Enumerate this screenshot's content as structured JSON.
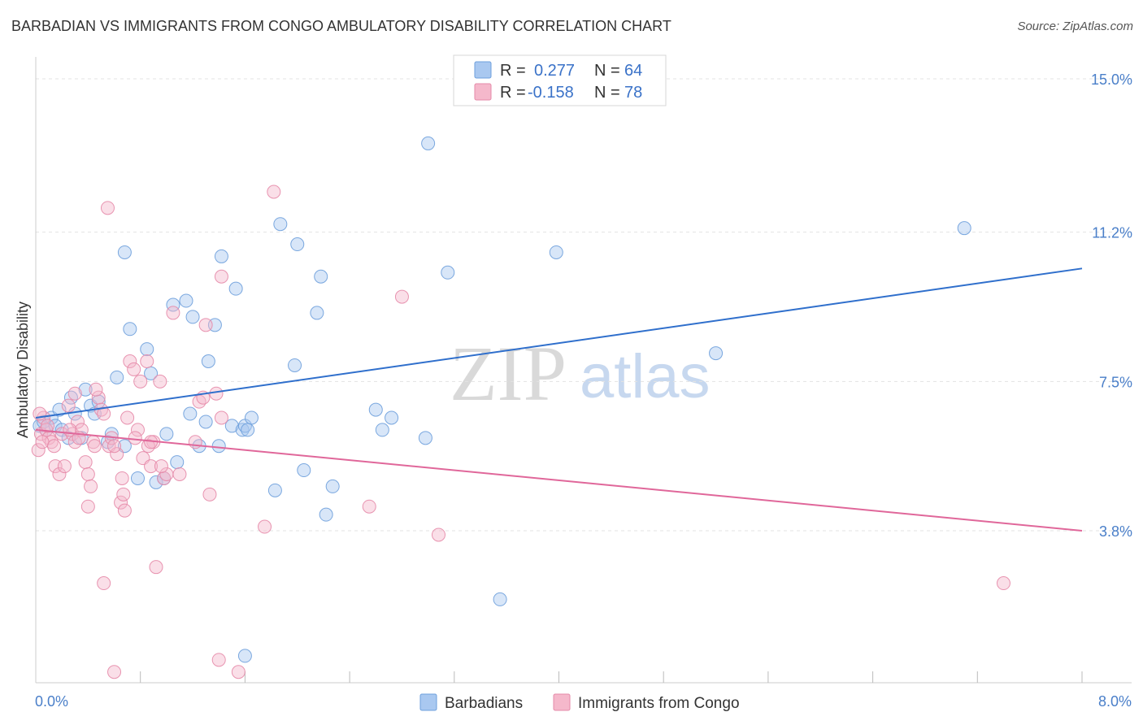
{
  "chart_data": {
    "type": "scatter",
    "title": "BARBADIAN VS IMMIGRANTS FROM CONGO AMBULATORY DISABILITY CORRELATION CHART",
    "source": "Source: ZipAtlas.com",
    "xlabel": "",
    "ylabel": "Ambulatory Disability",
    "xlim": [
      0,
      8.0
    ],
    "ylim": [
      0,
      15.5
    ],
    "x_tick_labels": [
      "0.0%",
      "8.0%"
    ],
    "x_tick_values": [
      0,
      8.0
    ],
    "y_ticks": [
      {
        "value": 3.8,
        "label": "3.8%"
      },
      {
        "value": 7.5,
        "label": "7.5%"
      },
      {
        "value": 11.2,
        "label": "11.2%"
      },
      {
        "value": 15.0,
        "label": "15.0%"
      }
    ],
    "minor_x_ticks": [
      0.8,
      1.6,
      2.4,
      3.2,
      4.0,
      4.8,
      5.6,
      6.4,
      7.2
    ],
    "grid": true,
    "watermark": {
      "zip": "ZIP",
      "atlas": "atlas"
    },
    "legend_top": {
      "rows": [
        {
          "r_label": "R =",
          "r_value": "0.277",
          "n_label": "N =",
          "n_value": "64",
          "color": "#a9c8f0"
        },
        {
          "r_label": "R =",
          "r_value": "-0.158",
          "n_label": "N =",
          "n_value": "78",
          "color": "#f5b8cb"
        }
      ]
    },
    "legend_bottom": [
      "Barbadians",
      "Immigrants from Congo"
    ],
    "series": [
      {
        "name": "Barbadians",
        "color": "#a9c8f0",
        "stroke": "#6d9fdc",
        "line_color": "#2f6fcc",
        "trend": {
          "x": [
            0,
            8.0
          ],
          "y": [
            6.6,
            10.3
          ]
        },
        "points": [
          [
            0.03,
            6.4
          ],
          [
            0.06,
            6.5
          ],
          [
            0.08,
            6.3
          ],
          [
            0.12,
            6.6
          ],
          [
            0.15,
            6.4
          ],
          [
            0.18,
            6.8
          ],
          [
            0.2,
            6.3
          ],
          [
            0.25,
            6.1
          ],
          [
            0.27,
            7.1
          ],
          [
            0.3,
            6.7
          ],
          [
            0.35,
            6.1
          ],
          [
            0.38,
            7.3
          ],
          [
            0.42,
            6.9
          ],
          [
            0.45,
            6.7
          ],
          [
            0.48,
            7.0
          ],
          [
            0.55,
            6.0
          ],
          [
            0.58,
            6.2
          ],
          [
            0.62,
            7.6
          ],
          [
            0.68,
            10.7
          ],
          [
            0.68,
            5.9
          ],
          [
            0.72,
            8.8
          ],
          [
            0.78,
            5.1
          ],
          [
            0.85,
            8.3
          ],
          [
            0.88,
            7.7
          ],
          [
            0.92,
            5.0
          ],
          [
            0.98,
            5.1
          ],
          [
            1.0,
            6.2
          ],
          [
            1.05,
            9.4
          ],
          [
            1.08,
            5.5
          ],
          [
            1.15,
            9.5
          ],
          [
            1.18,
            6.7
          ],
          [
            1.2,
            9.1
          ],
          [
            1.25,
            5.9
          ],
          [
            1.3,
            6.5
          ],
          [
            1.32,
            8.0
          ],
          [
            1.37,
            8.9
          ],
          [
            1.4,
            5.9
          ],
          [
            1.42,
            10.6
          ],
          [
            1.5,
            6.4
          ],
          [
            1.53,
            9.8
          ],
          [
            1.58,
            6.3
          ],
          [
            1.6,
            6.4
          ],
          [
            1.62,
            6.3
          ],
          [
            1.65,
            6.6
          ],
          [
            1.6,
            0.7
          ],
          [
            1.83,
            4.8
          ],
          [
            1.87,
            11.4
          ],
          [
            1.98,
            7.9
          ],
          [
            2.0,
            10.9
          ],
          [
            2.05,
            5.3
          ],
          [
            2.15,
            9.2
          ],
          [
            2.18,
            10.1
          ],
          [
            2.22,
            4.2
          ],
          [
            2.27,
            4.9
          ],
          [
            2.6,
            6.8
          ],
          [
            2.65,
            6.3
          ],
          [
            2.72,
            6.6
          ],
          [
            2.98,
            6.1
          ],
          [
            3.0,
            13.4
          ],
          [
            3.15,
            10.2
          ],
          [
            3.55,
            2.1
          ],
          [
            3.98,
            10.7
          ],
          [
            5.2,
            8.2
          ],
          [
            7.1,
            11.3
          ]
        ]
      },
      {
        "name": "Immigrants from Congo",
        "color": "#f5b8cb",
        "stroke": "#e58aa8",
        "line_color": "#e0679a",
        "trend": {
          "x": [
            0,
            8.0
          ],
          "y": [
            6.3,
            3.8
          ]
        },
        "points": [
          [
            0.02,
            5.8
          ],
          [
            0.04,
            6.2
          ],
          [
            0.06,
            6.6
          ],
          [
            0.08,
            6.3
          ],
          [
            0.1,
            6.1
          ],
          [
            0.12,
            6.0
          ],
          [
            0.15,
            5.4
          ],
          [
            0.18,
            5.2
          ],
          [
            0.2,
            6.2
          ],
          [
            0.22,
            5.4
          ],
          [
            0.25,
            6.9
          ],
          [
            0.28,
            6.2
          ],
          [
            0.3,
            6.0
          ],
          [
            0.32,
            6.5
          ],
          [
            0.35,
            6.3
          ],
          [
            0.38,
            5.5
          ],
          [
            0.4,
            5.2
          ],
          [
            0.42,
            4.9
          ],
          [
            0.44,
            6.0
          ],
          [
            0.45,
            5.9
          ],
          [
            0.48,
            7.1
          ],
          [
            0.5,
            6.8
          ],
          [
            0.52,
            2.5
          ],
          [
            0.55,
            11.8
          ],
          [
            0.56,
            5.9
          ],
          [
            0.58,
            6.1
          ],
          [
            0.6,
            0.3
          ],
          [
            0.62,
            5.7
          ],
          [
            0.65,
            4.5
          ],
          [
            0.67,
            4.7
          ],
          [
            0.68,
            4.3
          ],
          [
            0.7,
            6.6
          ],
          [
            0.72,
            8.0
          ],
          [
            0.75,
            7.8
          ],
          [
            0.78,
            6.3
          ],
          [
            0.8,
            7.5
          ],
          [
            0.82,
            5.6
          ],
          [
            0.85,
            8.0
          ],
          [
            0.88,
            5.4
          ],
          [
            0.9,
            6.0
          ],
          [
            0.92,
            2.9
          ],
          [
            0.95,
            7.5
          ],
          [
            0.98,
            5.1
          ],
          [
            1.0,
            5.2
          ],
          [
            1.05,
            9.2
          ],
          [
            1.22,
            6.0
          ],
          [
            1.25,
            7.0
          ],
          [
            1.28,
            7.1
          ],
          [
            1.3,
            8.9
          ],
          [
            1.33,
            4.7
          ],
          [
            1.38,
            7.2
          ],
          [
            1.42,
            6.6
          ],
          [
            1.42,
            10.1
          ],
          [
            1.55,
            0.3
          ],
          [
            1.4,
            0.6
          ],
          [
            1.75,
            3.9
          ],
          [
            1.82,
            12.2
          ],
          [
            2.55,
            4.4
          ],
          [
            2.8,
            9.6
          ],
          [
            3.08,
            3.7
          ],
          [
            7.4,
            2.5
          ],
          [
            0.03,
            6.7
          ],
          [
            0.05,
            6.0
          ],
          [
            0.09,
            6.4
          ],
          [
            0.14,
            5.9
          ],
          [
            0.26,
            6.3
          ],
          [
            0.33,
            6.1
          ],
          [
            0.46,
            7.3
          ],
          [
            0.52,
            6.7
          ],
          [
            0.6,
            5.9
          ],
          [
            0.76,
            6.1
          ],
          [
            0.86,
            5.9
          ],
          [
            0.96,
            5.4
          ],
          [
            0.4,
            4.4
          ],
          [
            0.66,
            5.1
          ],
          [
            0.88,
            6.0
          ],
          [
            1.1,
            5.2
          ],
          [
            0.3,
            7.2
          ]
        ]
      }
    ]
  }
}
